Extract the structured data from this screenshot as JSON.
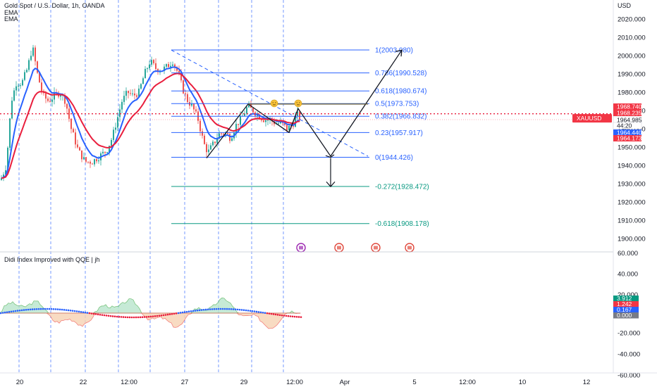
{
  "header": {
    "title": "Gold Spot / U.S. Dollar, 1h, OANDA",
    "indicators": [
      "EMA",
      "EMA"
    ],
    "currency": "USD"
  },
  "price_axis": {
    "ticks": [
      "2020.000",
      "2010.000",
      "2000.000",
      "1990.000",
      "1980.000",
      "1970.000",
      "1960.000",
      "1950.000",
      "1940.000",
      "1930.000",
      "1920.000",
      "1910.000",
      "1900.000"
    ],
    "symbol_tag": "XAUUSD",
    "tags": [
      {
        "text": "1968.740",
        "color": "#f23645"
      },
      {
        "text": "1968.235",
        "color": "#f23645"
      },
      {
        "text": "1964.985",
        "color": "#ffffff",
        "text_color": "#131722"
      },
      {
        "text": "44:20",
        "color": "#ffffff",
        "text_color": "#131722"
      },
      {
        "text": "1964.440",
        "color": "#2962ff"
      },
      {
        "text": "1964.173",
        "color": "#f23645"
      }
    ]
  },
  "fib_levels": [
    {
      "label": "1(2003.080)",
      "value": 2003.08,
      "color": "#2962ff"
    },
    {
      "label": "0.786(1990.528)",
      "value": 1990.528,
      "color": "#2962ff"
    },
    {
      "label": "0.618(1980.674)",
      "value": 1980.674,
      "color": "#2962ff"
    },
    {
      "label": "0.5(1973.753)",
      "value": 1973.753,
      "color": "#2962ff"
    },
    {
      "label": "0.382(1966.832)",
      "value": 1966.832,
      "color": "#2962ff"
    },
    {
      "label": "0.23(1957.917)",
      "value": 1957.917,
      "color": "#2962ff"
    },
    {
      "label": "0(1944.426)",
      "value": 1944.426,
      "color": "#2962ff"
    },
    {
      "label": "-0.272(1928.472)",
      "value": 1928.472,
      "color": "#089981"
    },
    {
      "label": "-0.618(1908.178)",
      "value": 1908.178,
      "color": "#089981"
    }
  ],
  "oscillator": {
    "title": "Didi Index Improved with QQE | jh",
    "ticks": [
      "40.000",
      "20.000",
      "-20.000",
      "-40.000",
      "-60.000"
    ],
    "zero_tick": "0.000",
    "tags": [
      {
        "text": "3.912",
        "color": "#089981"
      },
      {
        "text": "1.242",
        "color": "#f23645"
      },
      {
        "text": "0.167",
        "color": "#2962ff"
      },
      {
        "text": "0.000",
        "color": "#787b86"
      }
    ],
    "top_tick": "60.000",
    "partial_tick": "20.000"
  },
  "time_axis": {
    "labels": [
      "20",
      "22",
      "12:00",
      "27",
      "29",
      "12:00",
      "Apr",
      "5",
      "12:00",
      "10",
      "12"
    ]
  },
  "colors": {
    "up": "#26a69a",
    "down": "#ef5350",
    "ema_fast": "#2962ff",
    "ema_slow": "#e91e3d",
    "grid_dash": "#2962ff",
    "price_line": "#e91e3d"
  }
}
